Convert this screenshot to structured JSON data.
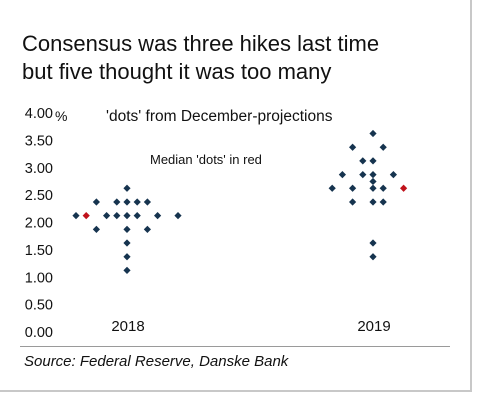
{
  "header": {
    "title_line1": "Consensus was three hikes last time",
    "title_line2": "but five thought it was too many"
  },
  "chart_data": {
    "type": "scatter",
    "title": "'dots' from December-projections",
    "annotation": "Median 'dots' in red",
    "ylabel": "%",
    "ylim": [
      0,
      4
    ],
    "yticks": [
      "0.00",
      "0.50",
      "1.00",
      "1.50",
      "2.00",
      "2.50",
      "3.00",
      "3.50",
      "4.00"
    ],
    "categories": [
      "2018",
      "2019"
    ],
    "dot_color": "#16344f",
    "median_color": "#c0121b",
    "points": [
      {
        "category": "2018",
        "offset": -5,
        "y": 2.125
      },
      {
        "category": "2018",
        "offset": -4,
        "y": 2.125,
        "median": true
      },
      {
        "category": "2018",
        "offset": -3,
        "y": 2.375
      },
      {
        "category": "2018",
        "offset": -3,
        "y": 1.875
      },
      {
        "category": "2018",
        "offset": -2,
        "y": 2.125
      },
      {
        "category": "2018",
        "offset": -1,
        "y": 2.375
      },
      {
        "category": "2018",
        "offset": -1,
        "y": 2.125
      },
      {
        "category": "2018",
        "offset": 0,
        "y": 2.625
      },
      {
        "category": "2018",
        "offset": 0,
        "y": 2.375
      },
      {
        "category": "2018",
        "offset": 0,
        "y": 2.125
      },
      {
        "category": "2018",
        "offset": 0,
        "y": 1.875
      },
      {
        "category": "2018",
        "offset": 0,
        "y": 1.625
      },
      {
        "category": "2018",
        "offset": 0,
        "y": 1.375
      },
      {
        "category": "2018",
        "offset": 0,
        "y": 1.125
      },
      {
        "category": "2018",
        "offset": 1,
        "y": 2.375
      },
      {
        "category": "2018",
        "offset": 1,
        "y": 2.125
      },
      {
        "category": "2018",
        "offset": 2,
        "y": 2.375
      },
      {
        "category": "2018",
        "offset": 2,
        "y": 1.875
      },
      {
        "category": "2018",
        "offset": 3,
        "y": 2.125
      },
      {
        "category": "2018",
        "offset": 5,
        "y": 2.125
      },
      {
        "category": "2019",
        "offset": -4,
        "y": 2.625
      },
      {
        "category": "2019",
        "offset": -3,
        "y": 2.875
      },
      {
        "category": "2019",
        "offset": -2,
        "y": 3.375
      },
      {
        "category": "2019",
        "offset": -2,
        "y": 2.625
      },
      {
        "category": "2019",
        "offset": -2,
        "y": 2.375
      },
      {
        "category": "2019",
        "offset": -1,
        "y": 3.125
      },
      {
        "category": "2019",
        "offset": -1,
        "y": 2.875
      },
      {
        "category": "2019",
        "offset": 0,
        "y": 3.625
      },
      {
        "category": "2019",
        "offset": 0,
        "y": 3.125
      },
      {
        "category": "2019",
        "offset": 0,
        "y": 2.875
      },
      {
        "category": "2019",
        "offset": 0,
        "y": 2.75
      },
      {
        "category": "2019",
        "offset": 0,
        "y": 2.625
      },
      {
        "category": "2019",
        "offset": 0,
        "y": 2.375
      },
      {
        "category": "2019",
        "offset": 0,
        "y": 1.625
      },
      {
        "category": "2019",
        "offset": 0,
        "y": 1.375
      },
      {
        "category": "2019",
        "offset": 1,
        "y": 3.375
      },
      {
        "category": "2019",
        "offset": 1,
        "y": 2.625
      },
      {
        "category": "2019",
        "offset": 1,
        "y": 2.375
      },
      {
        "category": "2019",
        "offset": 2,
        "y": 2.875
      },
      {
        "category": "2019",
        "offset": 3,
        "y": 2.625,
        "median": true
      }
    ]
  },
  "footer": {
    "source": "Source: Federal Reserve, Danske Bank"
  }
}
